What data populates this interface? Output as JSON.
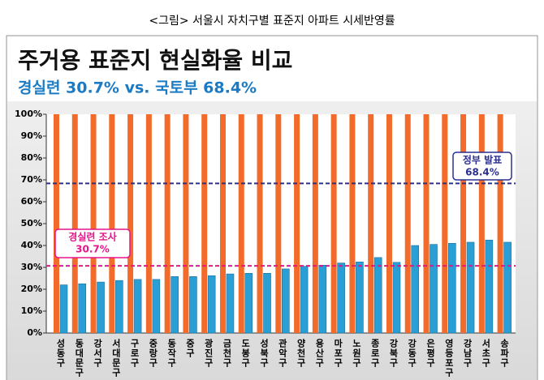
{
  "caption": "<그림> 서울시 자치구별 표준지 아파트 시세반영률",
  "chart_data": {
    "type": "bar",
    "title": "주거용 표준지 현실화율 비교",
    "subtitle": "경실련 30.7% vs. 국토부 68.4%",
    "categories": [
      "성동구",
      "동대문구",
      "강서구",
      "서대문구",
      "구로구",
      "중랑구",
      "동작구",
      "중구",
      "광진구",
      "금천구",
      "도봉구",
      "성북구",
      "관악구",
      "양천구",
      "용산구",
      "마포구",
      "노원구",
      "종로구",
      "강북구",
      "강동구",
      "은평구",
      "영등포구",
      "강남구",
      "서초구",
      "송파구"
    ],
    "series": [
      {
        "color": "#f26b2a",
        "values": [
          100,
          100,
          100,
          100,
          100,
          100,
          100,
          100,
          100,
          100,
          100,
          100,
          100,
          100,
          100,
          100,
          100,
          100,
          100,
          100,
          100,
          100,
          100,
          100,
          100
        ]
      },
      {
        "color": "#2a9fd6",
        "values": [
          22,
          22.5,
          23.3,
          24,
          24.5,
          24.5,
          25.8,
          25.8,
          26.2,
          27,
          27.3,
          27.3,
          29.3,
          30.5,
          31,
          32,
          32.5,
          34.5,
          32.3,
          40,
          40.5,
          41,
          41.5,
          42.5,
          41.5
        ]
      }
    ],
    "ylim": [
      0,
      100
    ],
    "yticks": [
      {
        "value": 0,
        "label": "0%"
      },
      {
        "value": 10,
        "label": "10%"
      },
      {
        "value": 20,
        "label": "20%"
      },
      {
        "value": 30,
        "label": "30%"
      },
      {
        "value": 40,
        "label": "40%"
      },
      {
        "value": 50,
        "label": "50%"
      },
      {
        "value": 60,
        "label": "60%"
      },
      {
        "value": 70,
        "label": "70%"
      },
      {
        "value": 80,
        "label": "80%"
      },
      {
        "value": 90,
        "label": "90%"
      },
      {
        "value": 100,
        "label": "100%"
      }
    ],
    "grid": false,
    "reference_lines": [
      {
        "value": 68.4,
        "label": "정부 발표",
        "value_label": "68.4%",
        "color": "#2b2f8f"
      },
      {
        "value": 30.7,
        "label": "경실련 조사",
        "value_label": "30.7%",
        "color": "#e6158a"
      }
    ]
  }
}
